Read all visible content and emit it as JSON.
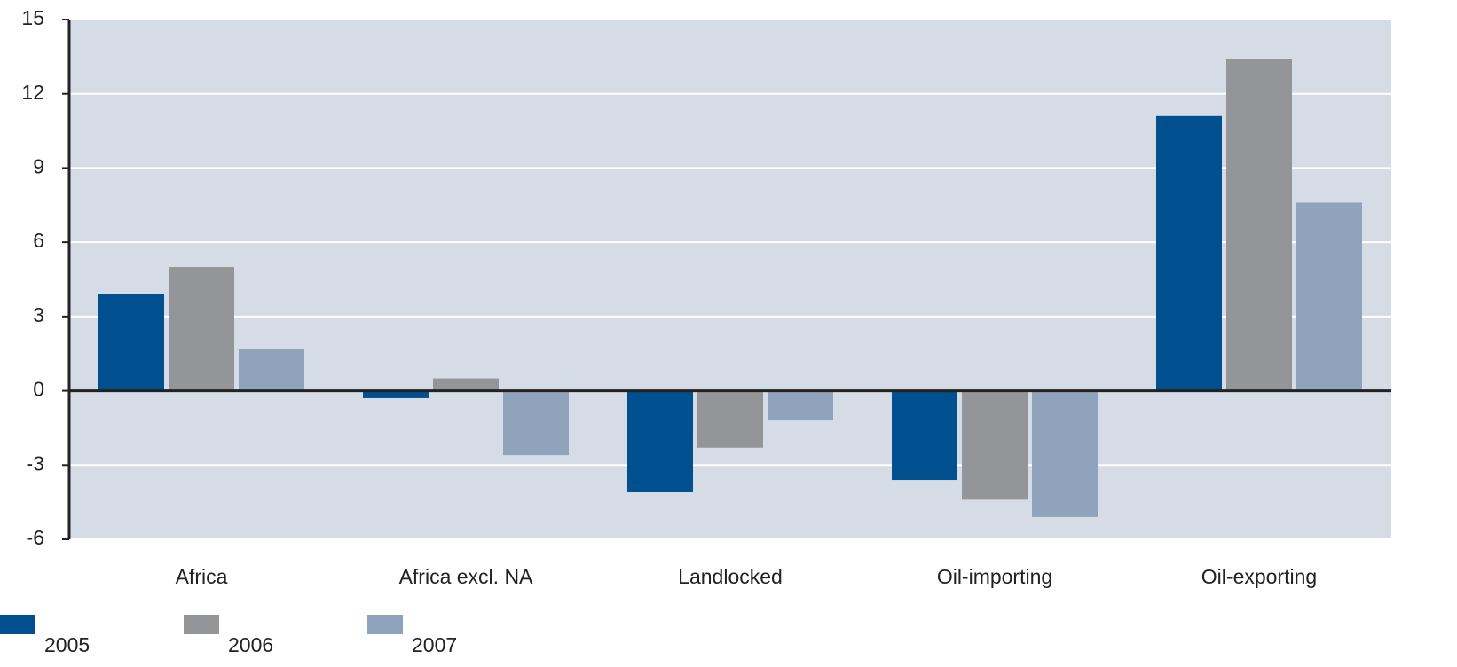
{
  "chart_data": {
    "type": "bar",
    "categories": [
      "Africa",
      "Africa excl. NA",
      "Landlocked",
      "Oil-importing",
      "Oil-exporting"
    ],
    "series": [
      {
        "name": "2005",
        "color": "#00508f",
        "values": [
          3.9,
          -0.3,
          -4.1,
          -3.6,
          11.1
        ]
      },
      {
        "name": "2006",
        "color": "#939598",
        "values": [
          5.0,
          0.5,
          -2.3,
          -4.4,
          13.4
        ]
      },
      {
        "name": "2007",
        "color": "#8fa3bd",
        "values": [
          1.7,
          -2.6,
          -1.2,
          -5.1,
          7.6
        ]
      }
    ],
    "ylim": [
      -6,
      15
    ],
    "yticks": [
      -6,
      -3,
      0,
      3,
      6,
      9,
      12,
      15
    ],
    "grid": true,
    "legend": "bottom-left"
  }
}
